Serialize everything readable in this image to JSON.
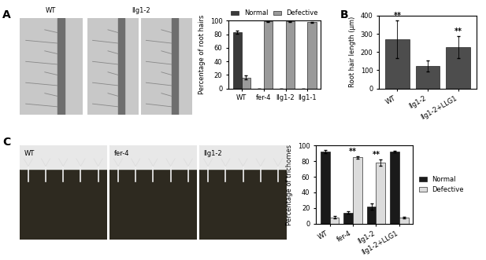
{
  "panel_labels": [
    "A",
    "B",
    "C"
  ],
  "micrographs": {
    "A": [
      "WT",
      "llg1-2"
    ],
    "C": [
      "WT",
      "fer-4",
      "llg1-2"
    ]
  },
  "chart_data": [
    {
      "type": "bar",
      "panel": "A",
      "ylabel": "Percentage of root hairs",
      "categories": [
        "WT",
        "fer-4",
        "llg1-2",
        "llg1-1"
      ],
      "series": [
        {
          "name": "Normal",
          "color": "#3a3a3a",
          "values": [
            83,
            0,
            0,
            0
          ],
          "errors": [
            2,
            0,
            0,
            0
          ]
        },
        {
          "name": "Defective",
          "color": "#9a9a9a",
          "values": [
            16,
            99,
            99,
            98
          ],
          "errors": [
            3,
            0.5,
            0.5,
            0.5
          ]
        }
      ],
      "ylim": [
        0,
        100
      ],
      "yticks": [
        0,
        20,
        40,
        60,
        80,
        100
      ],
      "legend": "lower center"
    },
    {
      "type": "bar",
      "panel": "B",
      "ylabel": "Root hair length (μm)",
      "categories": [
        "WT",
        "llg1-2",
        "llg1-2+LLG1"
      ],
      "series": [
        {
          "name": "Root hair length",
          "color": "#4d4d4d",
          "values": [
            270,
            125,
            228
          ],
          "errors": [
            105,
            30,
            60
          ]
        }
      ],
      "ylim": [
        0,
        400
      ],
      "yticks": [
        0,
        100,
        200,
        300,
        400
      ],
      "annotations": [
        {
          "text": "**",
          "category": "WT"
        },
        {
          "text": "**",
          "category": "llg1-2+LLG1"
        }
      ]
    },
    {
      "type": "bar",
      "panel": "C",
      "ylabel": "Percentage of trichomes",
      "categories": [
        "WT",
        "fer-4",
        "llg1-2",
        "llg1-2+LLG1"
      ],
      "series": [
        {
          "name": "Normal",
          "color": "#1a1a1a",
          "values": [
            92,
            14,
            22,
            92
          ],
          "errors": [
            2,
            1.5,
            4,
            1
          ]
        },
        {
          "name": "Defective",
          "color": "#dcdcdc",
          "values": [
            8,
            85,
            78,
            8
          ],
          "errors": [
            1.5,
            1.5,
            4,
            1
          ]
        }
      ],
      "ylim": [
        0,
        100
      ],
      "yticks": [
        0,
        20,
        40,
        60,
        80,
        100
      ],
      "legend": "center left",
      "annotations": [
        {
          "text": "**",
          "category": "fer-4"
        },
        {
          "text": "**",
          "category": "llg1-2"
        }
      ]
    }
  ]
}
